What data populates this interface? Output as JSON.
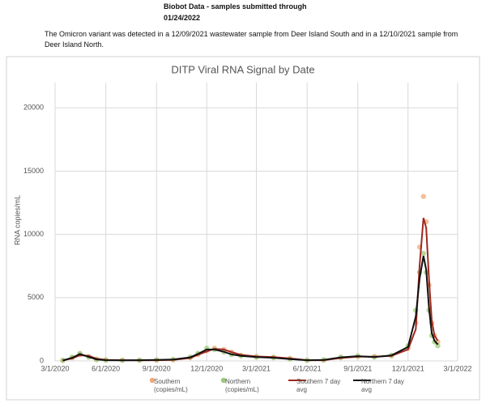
{
  "header": {
    "title": "Biobot Data - samples submitted through",
    "date": "01/24/2022",
    "note": "The Omicron variant was detected in a 12/09/2021 wastewater sample from Deer Island South and in a 12/10/2021 sample from Deer Island North."
  },
  "chart_data": {
    "type": "line",
    "title": "DITP Viral RNA Signal by Date",
    "y_label": "RNA copies/mL",
    "x": [
      "2020-03-15",
      "2020-04-01",
      "2020-04-15",
      "2020-05-01",
      "2020-05-15",
      "2020-06-01",
      "2020-07-01",
      "2020-08-01",
      "2020-09-01",
      "2020-10-01",
      "2020-11-01",
      "2020-11-15",
      "2020-12-01",
      "2020-12-15",
      "2021-01-01",
      "2021-01-15",
      "2021-02-01",
      "2021-03-01",
      "2021-04-01",
      "2021-05-01",
      "2021-06-01",
      "2021-07-01",
      "2021-08-01",
      "2021-09-01",
      "2021-10-01",
      "2021-11-01",
      "2021-12-01",
      "2021-12-15",
      "2021-12-22",
      "2021-12-29",
      "2022-01-03",
      "2022-01-08",
      "2022-01-13",
      "2022-01-18",
      "2022-01-24"
    ],
    "series": [
      {
        "name": "Southern (copies/mL)",
        "style": "points",
        "color": "#f0a878",
        "values": [
          50,
          250,
          500,
          350,
          150,
          80,
          60,
          50,
          60,
          80,
          250,
          500,
          800,
          1000,
          900,
          700,
          450,
          350,
          300,
          200,
          50,
          60,
          250,
          350,
          350,
          400,
          1000,
          3000,
          9000,
          13000,
          11000,
          6000,
          3000,
          2000,
          1500
        ]
      },
      {
        "name": "Northern (copies/mL)",
        "style": "points",
        "color": "#9cc97a",
        "values": [
          40,
          300,
          600,
          300,
          100,
          60,
          50,
          60,
          80,
          120,
          300,
          600,
          1000,
          900,
          700,
          500,
          400,
          300,
          250,
          150,
          50,
          80,
          300,
          400,
          300,
          450,
          1200,
          4000,
          7000,
          8500,
          7000,
          4000,
          2000,
          1500,
          1200
        ]
      },
      {
        "name": "Southern 7 day avg",
        "style": "line",
        "color": "#a0281e",
        "values": [
          40,
          200,
          450,
          400,
          180,
          80,
          60,
          50,
          60,
          80,
          230,
          480,
          750,
          950,
          900,
          700,
          480,
          350,
          300,
          200,
          60,
          60,
          230,
          340,
          340,
          400,
          900,
          2500,
          7500,
          11300,
          10500,
          6500,
          3200,
          2000,
          1600
        ]
      },
      {
        "name": "Northern 7 day avg",
        "style": "line",
        "color": "#111111",
        "values": [
          30,
          250,
          550,
          320,
          120,
          60,
          50,
          60,
          80,
          110,
          280,
          550,
          900,
          900,
          720,
          520,
          400,
          300,
          250,
          150,
          60,
          80,
          280,
          380,
          310,
          440,
          1100,
          3500,
          6500,
          8300,
          7200,
          4200,
          2200,
          1600,
          1300
        ]
      }
    ],
    "xlim": [
      "2020-03-01",
      "2022-03-01"
    ],
    "xticks": [
      {
        "value": "2020-03-01",
        "label": "3/1/2020"
      },
      {
        "value": "2020-06-01",
        "label": "6/1/2020"
      },
      {
        "value": "2020-09-01",
        "label": "9/1/2020"
      },
      {
        "value": "2020-12-01",
        "label": "12/1/2020"
      },
      {
        "value": "2021-03-01",
        "label": "3/1/2021"
      },
      {
        "value": "2021-06-01",
        "label": "6/1/2021"
      },
      {
        "value": "2021-09-01",
        "label": "9/1/2021"
      },
      {
        "value": "2021-12-01",
        "label": "12/1/2021"
      },
      {
        "value": "2022-03-01",
        "label": "3/1/2022"
      }
    ],
    "ylim": [
      0,
      22000
    ],
    "yticks": [
      0,
      5000,
      10000,
      15000,
      20000
    ],
    "grid": true
  }
}
